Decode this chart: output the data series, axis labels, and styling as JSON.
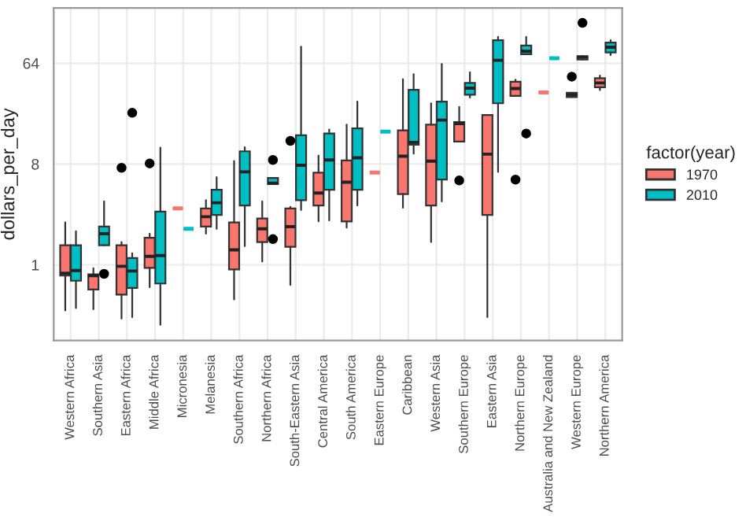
{
  "chart_data": {
    "type": "box",
    "xlabel": null,
    "ylabel": "dollars_per_day",
    "legend_title": "factor(year)",
    "categories": [
      "Western Africa",
      "Southern Asia",
      "Eastern Africa",
      "Middle Africa",
      "Micronesia",
      "Melanesia",
      "Southern Africa",
      "Northern Africa",
      "South-Eastern Asia",
      "Central America",
      "South America",
      "Eastern Europe",
      "Caribbean",
      "Western Asia",
      "Southern Europe",
      "Eastern Asia",
      "Northern Europe",
      "Australia and New Zealand",
      "Western Europe",
      "Northern America"
    ],
    "log": "y",
    "ylim": [
      0.21,
      200
    ],
    "yticks": [
      1,
      8,
      64
    ],
    "grid": true,
    "legend": "right",
    "series": [
      {
        "name": "1970",
        "color": "#f8766d",
        "boxes": [
          {
            "low": 0.39,
            "q1": 0.8,
            "median": 0.84,
            "q3": 1.5,
            "high": 2.4
          },
          {
            "low": 0.4,
            "q1": 0.6,
            "median": 0.8,
            "q3": 0.82,
            "high": 0.93
          },
          {
            "low": 0.33,
            "q1": 0.54,
            "median": 0.97,
            "q3": 1.5,
            "high": 1.6,
            "outliers": [
              7.4
            ]
          },
          {
            "low": 0.63,
            "q1": 0.94,
            "median": 1.19,
            "q3": 1.75,
            "high": 1.9,
            "outliers": [
              8.1
            ]
          },
          {
            "low": 3.2,
            "q1": 3.2,
            "median": 3.2,
            "q3": 3.2,
            "high": 3.2
          },
          {
            "low": 1.9,
            "q1": 2.2,
            "median": 2.7,
            "q3": 3.2,
            "high": 3.8
          },
          {
            "low": 0.49,
            "q1": 0.91,
            "median": 1.36,
            "q3": 2.4,
            "high": 8.5
          },
          {
            "low": 1.07,
            "q1": 1.6,
            "median": 2.1,
            "q3": 2.6,
            "high": 3.7
          },
          {
            "low": 0.66,
            "q1": 1.45,
            "median": 2.2,
            "q3": 3.2,
            "high": 3.3,
            "outliers": [
              12.9
            ]
          },
          {
            "low": 2.45,
            "q1": 3.4,
            "median": 4.4,
            "q3": 6.7,
            "high": 9.5
          },
          {
            "low": 2.15,
            "q1": 2.45,
            "median": 5.5,
            "q3": 8.6,
            "high": 18
          },
          {
            "low": 6.7,
            "q1": 6.7,
            "median": 6.7,
            "q3": 6.7,
            "high": 6.7
          },
          {
            "low": 3.25,
            "q1": 4.3,
            "median": 9.4,
            "q3": 16,
            "high": 46
          },
          {
            "low": 1.6,
            "q1": 3.4,
            "median": 8.5,
            "q3": 18,
            "high": 28
          },
          {
            "low": 12.7,
            "q1": 12.7,
            "median": 18.4,
            "q3": 19,
            "high": 26,
            "outliers": [
              5.7
            ]
          },
          {
            "low": 0.34,
            "q1": 2.8,
            "median": 9.8,
            "q3": 22,
            "high": 22
          },
          {
            "low": 32.6,
            "q1": 32.6,
            "median": 38,
            "q3": 43.6,
            "high": 45.5,
            "outliers": [
              5.8
            ]
          },
          {
            "low": 35,
            "q1": 35,
            "median": 35,
            "q3": 35,
            "high": 35
          },
          {
            "low": 31.8,
            "q1": 31.8,
            "median": 33.3,
            "q3": 34.8,
            "high": 34.8,
            "outliers": [
              48.5
            ]
          },
          {
            "low": 36.8,
            "q1": 39,
            "median": 42.6,
            "q3": 47,
            "high": 49.5
          }
        ]
      },
      {
        "name": "2010",
        "color": "#00bfc4",
        "boxes": [
          {
            "low": 0.41,
            "q1": 0.72,
            "median": 0.89,
            "q3": 1.5,
            "high": 2.0
          },
          {
            "low": 1.5,
            "q1": 1.5,
            "median": 1.9,
            "q3": 2.2,
            "high": 3.7,
            "outliers": [
              0.83
            ]
          },
          {
            "low": 0.34,
            "q1": 0.62,
            "median": 0.88,
            "q3": 1.15,
            "high": 1.27,
            "outliers": [
              23
            ]
          },
          {
            "low": 0.29,
            "q1": 0.68,
            "median": 1.21,
            "q3": 3.0,
            "high": 11.2
          },
          {
            "low": 2.1,
            "q1": 2.1,
            "median": 2.1,
            "q3": 2.1,
            "high": 2.1
          },
          {
            "low": 2.1,
            "q1": 2.8,
            "median": 3.6,
            "q3": 4.7,
            "high": 6.1
          },
          {
            "low": 1.47,
            "q1": 3.4,
            "median": 6.8,
            "q3": 10.4,
            "high": 11.3
          },
          {
            "low": 5.3,
            "q1": 5.3,
            "median": 5.4,
            "q3": 6.0,
            "high": 6.0,
            "outliers": [
              8.7,
              1.7
            ]
          },
          {
            "low": 3.1,
            "q1": 3.8,
            "median": 7.8,
            "q3": 14.5,
            "high": 90
          },
          {
            "low": 2.5,
            "q1": 4.7,
            "median": 8.7,
            "q3": 15,
            "high": 16.3
          },
          {
            "low": 3.4,
            "q1": 4.7,
            "median": 9.1,
            "q3": 16.7,
            "high": 29
          },
          {
            "low": 15.6,
            "q1": 15.6,
            "median": 15.6,
            "q3": 15.6,
            "high": 15.6
          },
          {
            "low": 9.9,
            "q1": 11.9,
            "median": 12.5,
            "q3": 37,
            "high": 51
          },
          {
            "low": 3.7,
            "q1": 5.8,
            "median": 19.8,
            "q3": 29,
            "high": 63
          },
          {
            "low": 31.5,
            "q1": 33.4,
            "median": 38.3,
            "q3": 42.6,
            "high": 53
          },
          {
            "low": 6.8,
            "q1": 28,
            "median": 68,
            "q3": 103,
            "high": 110
          },
          {
            "low": 77,
            "q1": 77,
            "median": 82,
            "q3": 92,
            "high": 110,
            "outliers": [
              15
            ]
          },
          {
            "low": 71,
            "q1": 71,
            "median": 71,
            "q3": 71,
            "high": 71
          },
          {
            "low": 69,
            "q1": 69,
            "median": 72.5,
            "q3": 74,
            "high": 74,
            "outliers": [
              147
            ]
          },
          {
            "low": 75.6,
            "q1": 80,
            "median": 89,
            "q3": 98,
            "high": 103
          }
        ]
      }
    ]
  }
}
